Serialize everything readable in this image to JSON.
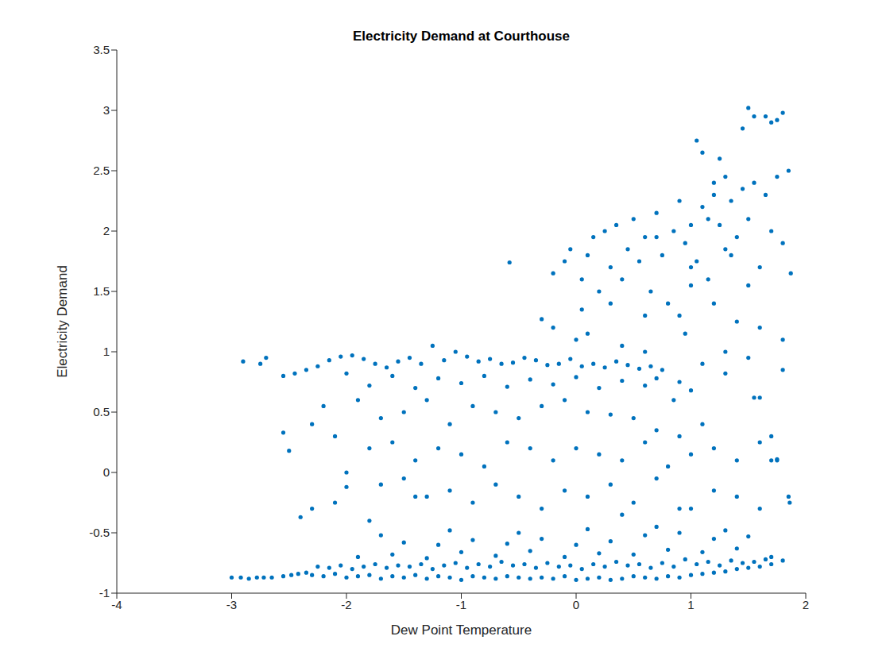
{
  "chart_data": {
    "type": "scatter",
    "title": "Electricity Demand at Courthouse",
    "x_label": "Dew Point Temperature",
    "y_label": "Electricity Demand",
    "color": "#0072bd",
    "marker": "circle",
    "grid": false,
    "xlim": [
      -4,
      2
    ],
    "xticks": [
      -4,
      -3,
      -2,
      -1,
      0,
      1,
      2
    ],
    "ylim": [
      -1,
      3.5
    ],
    "yticks": [
      -1,
      -0.5,
      0,
      0.5,
      1,
      1.5,
      2,
      2.5,
      3,
      3.5
    ],
    "x": [
      -3.0,
      -2.92,
      -2.85,
      -2.78,
      -2.72,
      -2.65,
      -2.55,
      -2.48,
      -2.42,
      -2.35,
      -2.3,
      -2.2,
      -2.1,
      -2.0,
      -1.9,
      -1.8,
      -1.7,
      -1.6,
      -1.5,
      -1.4,
      -1.3,
      -1.2,
      -1.1,
      -1.0,
      -0.9,
      -0.8,
      -0.7,
      -0.6,
      -0.5,
      -0.4,
      -0.3,
      -0.2,
      -0.1,
      0.0,
      0.1,
      0.2,
      0.3,
      0.4,
      0.5,
      0.6,
      0.7,
      0.8,
      0.9,
      1.0,
      1.1,
      1.2,
      1.3,
      1.4,
      1.5,
      1.6,
      1.7,
      1.8,
      -2.25,
      -2.15,
      -2.05,
      -1.95,
      -1.85,
      -1.75,
      -1.65,
      -1.55,
      -1.45,
      -1.35,
      -1.25,
      -1.15,
      -1.05,
      -0.95,
      -0.85,
      -0.75,
      -0.65,
      -0.55,
      -0.45,
      -0.35,
      -0.25,
      -0.15,
      -0.05,
      0.05,
      0.15,
      0.25,
      0.35,
      0.45,
      0.55,
      0.65,
      0.75,
      0.85,
      0.95,
      1.05,
      1.15,
      1.25,
      1.35,
      1.45,
      1.55,
      1.65,
      -1.9,
      -1.6,
      -1.3,
      -1.0,
      -0.7,
      -0.4,
      -0.1,
      0.2,
      0.5,
      0.8,
      1.1,
      1.4,
      1.7,
      -1.5,
      -1.2,
      -0.9,
      -0.6,
      -0.3,
      0.0,
      0.3,
      0.6,
      0.9,
      1.2,
      1.5,
      -1.7,
      -1.1,
      -0.5,
      0.1,
      0.7,
      1.3,
      -2.4,
      -2.3,
      -2.1,
      -1.8,
      -2.0,
      -1.4,
      0.4,
      1.0,
      -2.9,
      -2.75,
      -2.7,
      -2.55,
      -2.45,
      -2.35,
      -2.25,
      -2.15,
      -2.05,
      -1.95,
      -1.85,
      -1.75,
      -1.65,
      -1.55,
      -1.45,
      -1.35,
      -1.25,
      -1.15,
      -1.05,
      -0.95,
      -0.85,
      -0.75,
      -0.65,
      -0.55,
      -0.45,
      -0.35,
      -0.25,
      -0.15,
      -0.05,
      0.05,
      0.15,
      0.25,
      0.35,
      0.45,
      0.55,
      0.65,
      0.75,
      -2.0,
      -1.6,
      -1.2,
      -0.8,
      -0.4,
      0.0,
      0.4,
      0.7,
      -1.8,
      -1.4,
      -1.0,
      -0.6,
      -0.2,
      0.2,
      0.6,
      0.9,
      1.1,
      1.3,
      1.5,
      1.6,
      1.8,
      0.85,
      1.0,
      -2.55,
      -2.5,
      -2.3,
      -2.2,
      -1.9,
      -1.7,
      -1.5,
      -1.3,
      -1.1,
      -0.9,
      -0.7,
      -0.5,
      -0.3,
      -0.1,
      0.1,
      0.3,
      0.5,
      0.7,
      0.9,
      1.1,
      -2.1,
      -1.8,
      -1.6,
      -1.4,
      -1.2,
      -1.0,
      -0.8,
      -0.6,
      -0.4,
      -0.2,
      0.0,
      0.2,
      0.4,
      0.6,
      0.8,
      1.0,
      1.2,
      1.4,
      1.6,
      1.7,
      -2.0,
      -1.7,
      -1.5,
      -1.3,
      -1.1,
      -0.9,
      -0.7,
      -0.5,
      -0.3,
      -0.1,
      0.1,
      0.3,
      0.5,
      0.7,
      0.9,
      1.2,
      1.4,
      1.6,
      1.75,
      1.85,
      -0.58,
      -0.2,
      -0.1,
      -0.05,
      0.05,
      0.1,
      0.15,
      0.2,
      0.25,
      0.3,
      0.35,
      0.4,
      0.45,
      0.5,
      0.55,
      0.6,
      0.65,
      0.7,
      0.75,
      0.8,
      0.85,
      0.9,
      0.95,
      1.0,
      1.05,
      1.1,
      1.15,
      1.2,
      1.25,
      1.3,
      1.35,
      1.4,
      1.45,
      1.5,
      1.55,
      1.6,
      1.65,
      1.7,
      1.75,
      1.8,
      0.9,
      0.95,
      1.0,
      1.05,
      1.1,
      1.2,
      1.25,
      1.3,
      1.4,
      1.5,
      0.05,
      0.3,
      0.6,
      0.7,
      1.0,
      1.15,
      1.35,
      1.45,
      1.5,
      1.55,
      1.65,
      1.7,
      1.75,
      1.8,
      1.85,
      1.6,
      1.8,
      1.87,
      1.86,
      1.2,
      -0.3,
      -0.2,
      0.0,
      0.1,
      1.7,
      1.75,
      0.4,
      0.6,
      1.3,
      1.55
    ],
    "values": [
      -0.87,
      -0.87,
      -0.88,
      -0.87,
      -0.87,
      -0.87,
      -0.86,
      -0.85,
      -0.84,
      -0.83,
      -0.85,
      -0.86,
      -0.84,
      -0.87,
      -0.86,
      -0.85,
      -0.88,
      -0.86,
      -0.87,
      -0.85,
      -0.88,
      -0.86,
      -0.87,
      -0.89,
      -0.86,
      -0.87,
      -0.88,
      -0.86,
      -0.87,
      -0.88,
      -0.87,
      -0.88,
      -0.86,
      -0.89,
      -0.88,
      -0.87,
      -0.89,
      -0.88,
      -0.86,
      -0.87,
      -0.88,
      -0.86,
      -0.87,
      -0.85,
      -0.84,
      -0.83,
      -0.82,
      -0.8,
      -0.79,
      -0.78,
      -0.76,
      -0.73,
      -0.78,
      -0.79,
      -0.77,
      -0.8,
      -0.78,
      -0.76,
      -0.79,
      -0.77,
      -0.78,
      -0.76,
      -0.8,
      -0.77,
      -0.75,
      -0.79,
      -0.76,
      -0.78,
      -0.74,
      -0.77,
      -0.76,
      -0.79,
      -0.75,
      -0.78,
      -0.77,
      -0.8,
      -0.76,
      -0.78,
      -0.74,
      -0.77,
      -0.76,
      -0.79,
      -0.75,
      -0.78,
      -0.72,
      -0.76,
      -0.74,
      -0.77,
      -0.73,
      -0.75,
      -0.74,
      -0.72,
      -0.7,
      -0.68,
      -0.71,
      -0.66,
      -0.69,
      -0.65,
      -0.7,
      -0.67,
      -0.68,
      -0.64,
      -0.66,
      -0.63,
      -0.7,
      -0.58,
      -0.6,
      -0.56,
      -0.59,
      -0.55,
      -0.6,
      -0.57,
      -0.52,
      -0.5,
      -0.55,
      -0.53,
      -0.52,
      -0.48,
      -0.5,
      -0.47,
      -0.45,
      -0.48,
      -0.37,
      -0.3,
      -0.25,
      -0.4,
      -0.12,
      -0.2,
      -0.35,
      -0.3,
      0.92,
      0.9,
      0.95,
      0.8,
      0.82,
      0.85,
      0.88,
      0.93,
      0.96,
      0.97,
      0.94,
      0.9,
      0.87,
      0.92,
      0.95,
      0.9,
      1.05,
      0.93,
      1.0,
      0.96,
      0.92,
      0.94,
      0.9,
      0.91,
      0.95,
      0.93,
      0.89,
      0.9,
      0.94,
      0.88,
      0.9,
      0.87,
      0.92,
      0.89,
      0.86,
      0.88,
      0.85,
      0.82,
      0.8,
      0.78,
      0.8,
      0.77,
      0.79,
      0.76,
      0.78,
      0.72,
      0.7,
      0.74,
      0.71,
      0.73,
      0.7,
      0.72,
      0.75,
      0.9,
      0.82,
      0.95,
      0.62,
      0.85,
      0.6,
      0.68,
      0.33,
      0.18,
      0.4,
      0.55,
      0.6,
      0.45,
      0.5,
      0.6,
      0.4,
      0.55,
      0.5,
      0.45,
      0.55,
      0.6,
      0.5,
      0.48,
      0.45,
      0.35,
      0.3,
      0.4,
      0.3,
      0.2,
      0.25,
      0.1,
      0.2,
      0.15,
      0.05,
      0.25,
      0.2,
      0.1,
      0.2,
      0.15,
      0.1,
      0.25,
      0.05,
      0.15,
      0.2,
      0.1,
      0.25,
      0.3,
      0.0,
      -0.1,
      -0.05,
      -0.2,
      -0.15,
      -0.25,
      -0.1,
      -0.2,
      -0.3,
      -0.15,
      -0.2,
      -0.1,
      -0.25,
      -0.05,
      -0.3,
      -0.15,
      -0.2,
      -0.3,
      0.1,
      -0.2,
      1.74,
      1.65,
      1.75,
      1.85,
      1.6,
      1.8,
      1.95,
      1.5,
      2.0,
      1.7,
      2.05,
      1.6,
      1.85,
      2.1,
      1.75,
      1.95,
      1.5,
      2.15,
      1.8,
      1.4,
      2.0,
      1.3,
      1.9,
      2.05,
      1.75,
      2.2,
      1.6,
      2.3,
      2.05,
      1.85,
      2.25,
      1.95,
      2.35,
      2.1,
      2.4,
      1.7,
      2.3,
      2.0,
      2.45,
      1.9,
      2.25,
      1.15,
      1.55,
      2.75,
      2.65,
      1.4,
      2.6,
      2.45,
      1.25,
      1.55,
      1.35,
      1.4,
      1.3,
      1.95,
      1.7,
      2.1,
      1.8,
      2.85,
      3.02,
      2.95,
      2.95,
      2.9,
      2.92,
      2.98,
      2.5,
      1.2,
      1.1,
      1.65,
      -0.25,
      2.4,
      1.27,
      1.2,
      1.1,
      1.15,
      0.1,
      0.11,
      1.05,
      1.0,
      1.0,
      0.62
    ]
  }
}
